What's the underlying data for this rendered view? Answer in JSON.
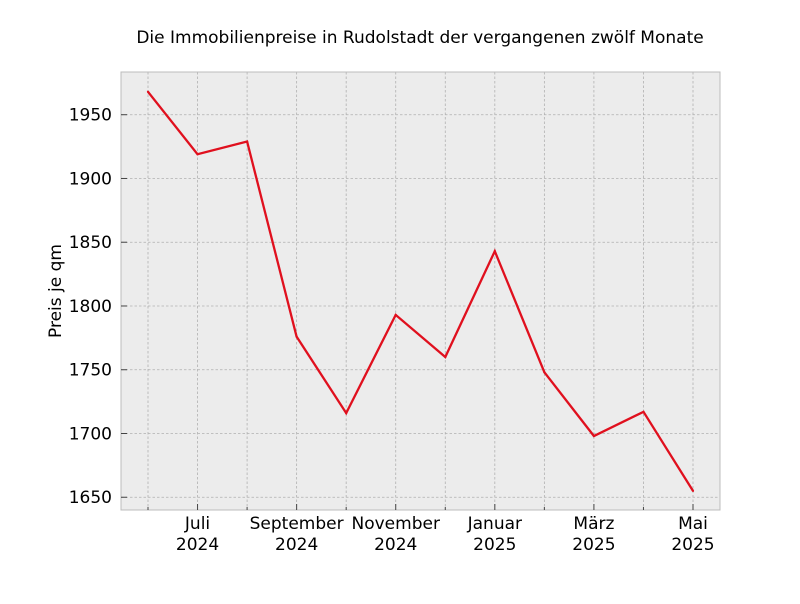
{
  "chart_data": {
    "type": "line",
    "title": "Die Immobilienpreise in Rudolstadt der vergangenen zwölf Monate",
    "xlabel": "",
    "ylabel": "Preis je qm",
    "x": [
      "2024-06",
      "2024-07",
      "2024-08",
      "2024-09",
      "2024-10",
      "2024-11",
      "2024-12",
      "2025-01",
      "2025-02",
      "2025-03",
      "2025-04",
      "2025-05"
    ],
    "series": [
      {
        "values": [
          1968,
          1919,
          1929,
          1776,
          1716,
          1793,
          1760,
          1843,
          1748,
          1698,
          1717,
          1655
        ],
        "color": "#e0101e"
      }
    ],
    "xticks": [
      {
        "x": "2024-07",
        "line1": "Juli",
        "line2": "2024"
      },
      {
        "x": "2024-09",
        "line1": "September",
        "line2": "2024"
      },
      {
        "x": "2024-11",
        "line1": "November",
        "line2": "2024"
      },
      {
        "x": "2025-01",
        "line1": "Januar",
        "line2": "2025"
      },
      {
        "x": "2025-03",
        "line1": "März",
        "line2": "2025"
      },
      {
        "x": "2025-05",
        "line1": "Mai",
        "line2": "2025"
      }
    ],
    "yticks": [
      1650,
      1700,
      1750,
      1800,
      1850,
      1900,
      1950
    ],
    "ylim": [
      1640,
      1983.5
    ],
    "grid": true,
    "legend": "none",
    "colors": {
      "plot_background": "#ececec",
      "grid": "#b0b0b0",
      "frame": "#bcbcbc"
    }
  }
}
